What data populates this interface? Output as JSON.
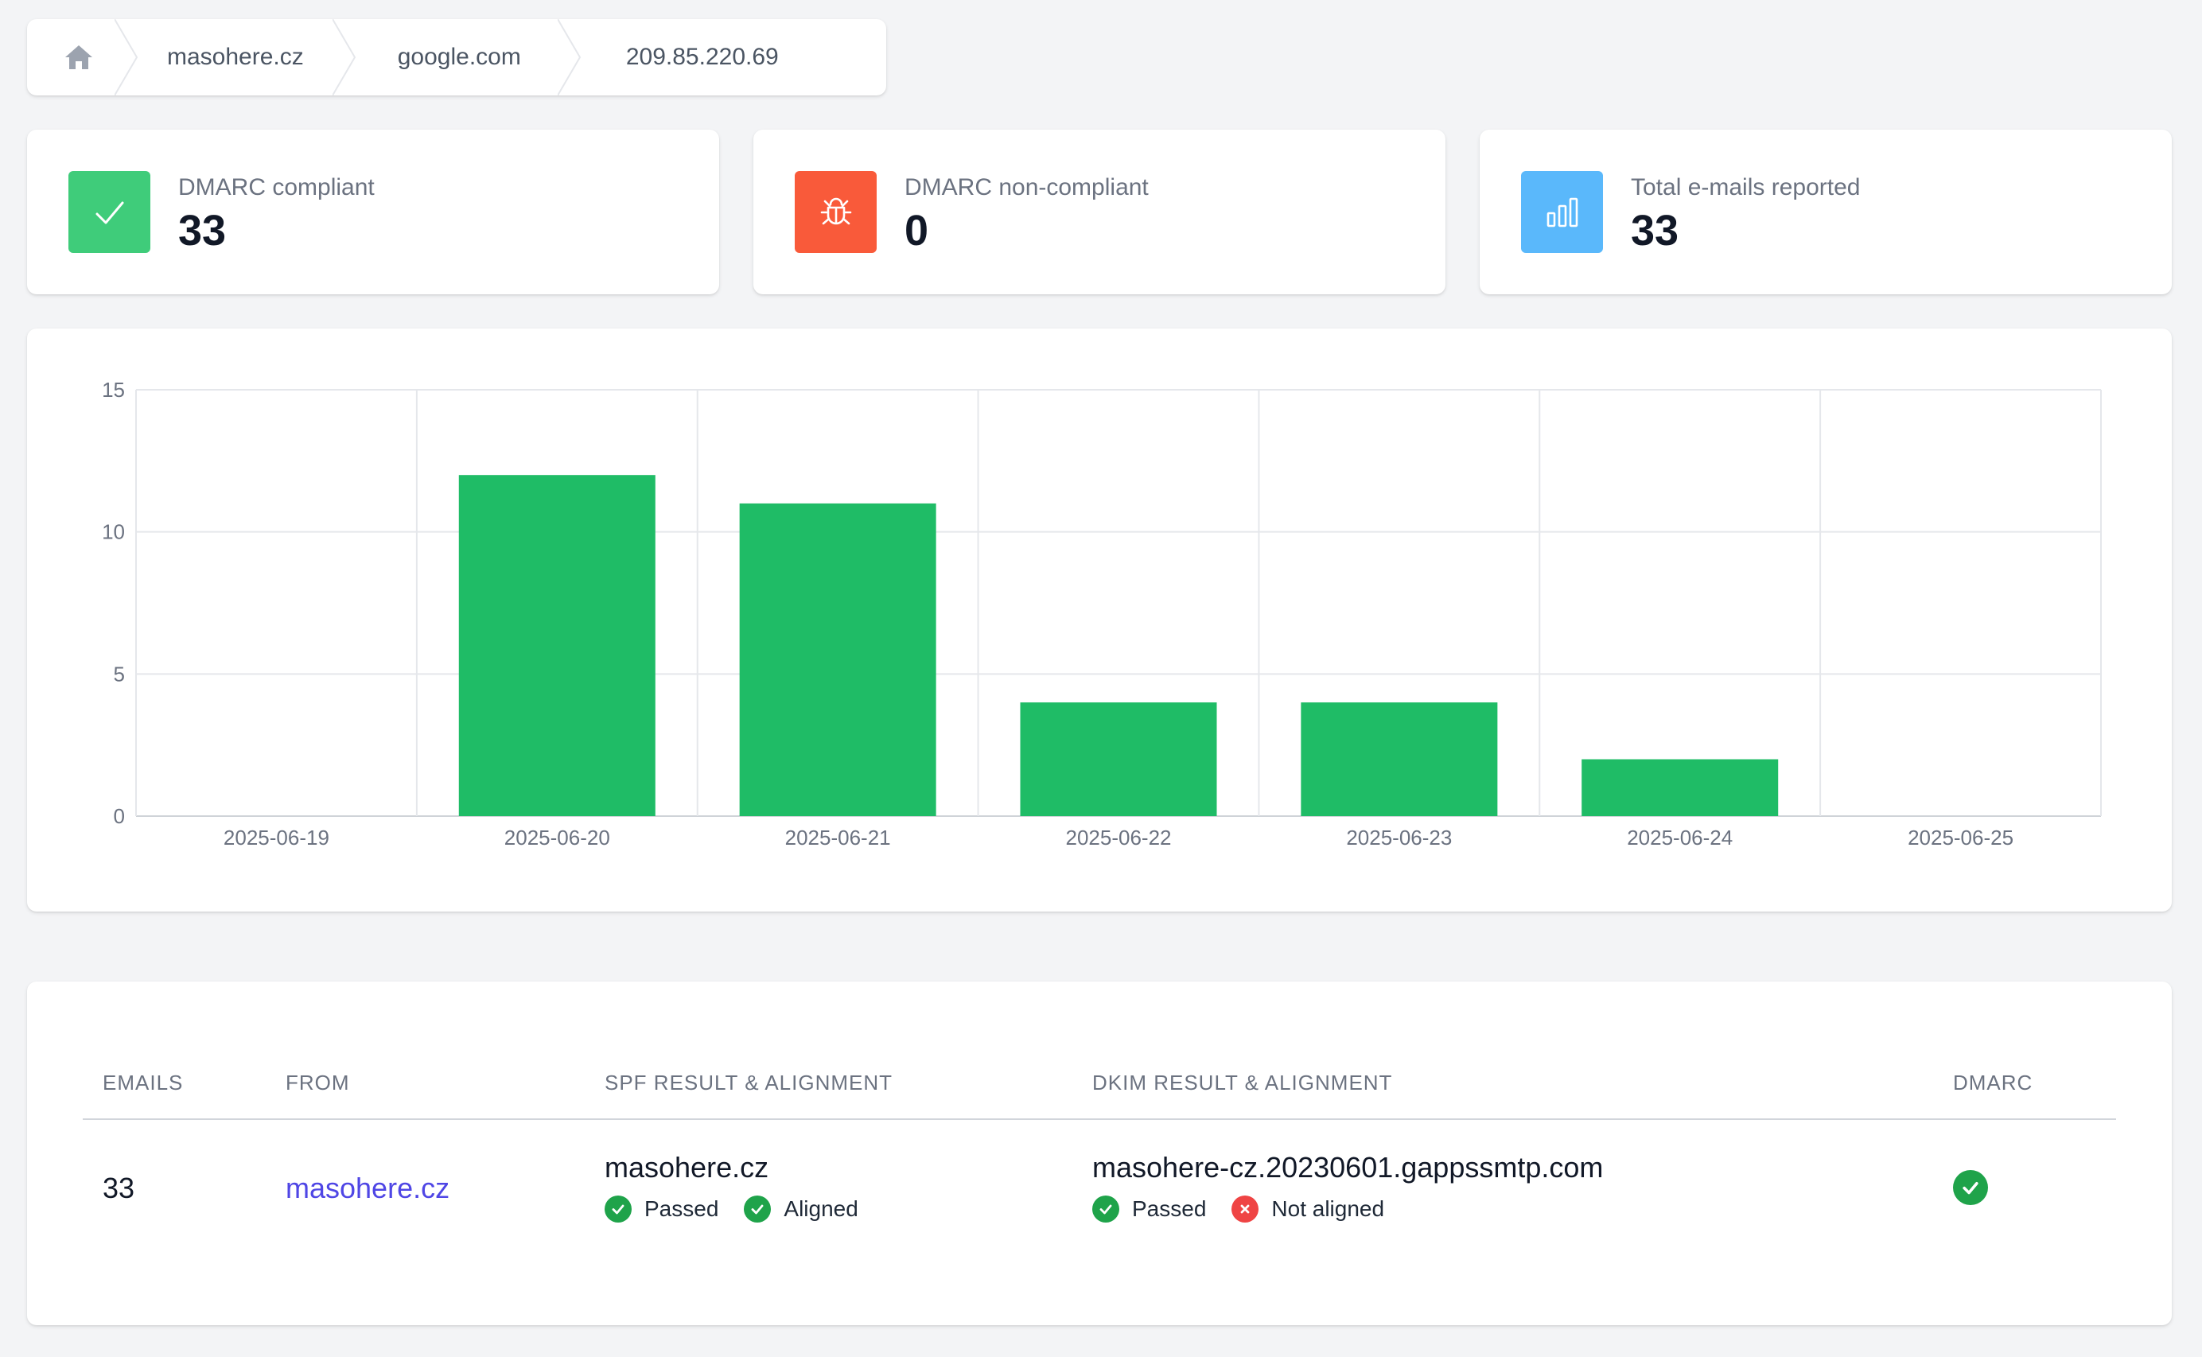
{
  "breadcrumb": {
    "home_icon": "home-icon",
    "items": [
      "masohere.cz",
      "google.com",
      "209.85.220.69"
    ]
  },
  "stats": [
    {
      "label": "DMARC compliant",
      "value": "33",
      "icon": "check-icon",
      "color": "#3fcc7a"
    },
    {
      "label": "DMARC non-compliant",
      "value": "0",
      "icon": "bug-icon",
      "color": "#f95a3a"
    },
    {
      "label": "Total e-mails reported",
      "value": "33",
      "icon": "bar-chart-icon",
      "color": "#5ab8fb"
    }
  ],
  "chart_data": {
    "type": "bar",
    "categories": [
      "2025-06-19",
      "2025-06-20",
      "2025-06-21",
      "2025-06-22",
      "2025-06-23",
      "2025-06-24",
      "2025-06-25"
    ],
    "values": [
      0,
      12,
      11,
      4,
      4,
      2,
      0
    ],
    "yticks": [
      0,
      5,
      10,
      15
    ],
    "ylim": [
      0,
      15
    ],
    "bar_color": "#1fbc66",
    "grid": true
  },
  "table": {
    "headers": {
      "emails": "EMAILS",
      "from": "FROM",
      "spf": "SPF RESULT & ALIGNMENT",
      "dkim": "DKIM RESULT & ALIGNMENT",
      "dmarc": "DMARC"
    },
    "rows": [
      {
        "emails": "33",
        "from": "masohere.cz",
        "spf_domain": "masohere.cz",
        "spf_result": "Passed",
        "spf_alignment": "Aligned",
        "dkim_domain": "masohere-cz.20230601.gappssmtp.com",
        "dkim_result": "Passed",
        "dkim_alignment": "Not aligned",
        "dmarc_icon": "check-circle-icon"
      }
    ]
  }
}
